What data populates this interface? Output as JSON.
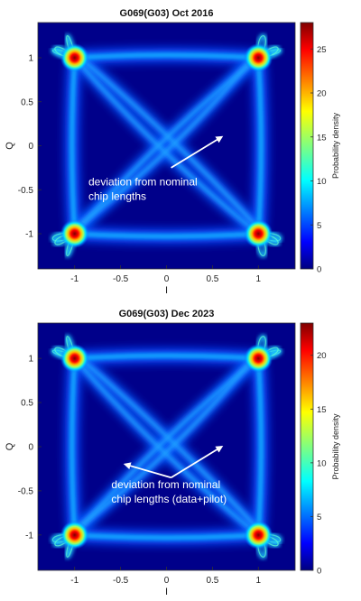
{
  "chart_data": [
    {
      "type": "heatmap",
      "title": "G069(G03) Oct 2016",
      "xlabel": "I",
      "ylabel": "Q",
      "xlim": [
        -1.4,
        1.4
      ],
      "ylim": [
        -1.4,
        1.4
      ],
      "x_ticks": [
        -1,
        -0.5,
        0,
        0.5,
        1
      ],
      "y_ticks": [
        1,
        0.5,
        0,
        -0.5,
        -1
      ],
      "colorbar": {
        "label": "Probability density",
        "range": [
          0,
          28
        ],
        "ticks": [
          0,
          5,
          10,
          15,
          20,
          25
        ]
      },
      "peaks": [
        {
          "x": -1,
          "y": 1,
          "value": 28
        },
        {
          "x": 1,
          "y": 1,
          "value": 28
        },
        {
          "x": -1,
          "y": -1,
          "value": 28
        },
        {
          "x": 1,
          "y": -1,
          "value": 28
        }
      ],
      "annotation": {
        "text_lines": [
          "deviation from nominal",
          "chip lengths"
        ],
        "arrows": [
          {
            "from": [
              0.05,
              -0.25
            ],
            "to": [
              0.6,
              0.1
            ]
          }
        ]
      }
    },
    {
      "type": "heatmap",
      "title": "G069(G03) Dec 2023",
      "xlabel": "I",
      "ylabel": "Q",
      "xlim": [
        -1.4,
        1.4
      ],
      "ylim": [
        -1.4,
        1.4
      ],
      "x_ticks": [
        -1,
        -0.5,
        0,
        0.5,
        1
      ],
      "y_ticks": [
        1,
        0.5,
        0,
        -0.5,
        -1
      ],
      "colorbar": {
        "label": "Probability density",
        "range": [
          0,
          23
        ],
        "ticks": [
          0,
          5,
          10,
          15,
          20
        ]
      },
      "peaks": [
        {
          "x": -1,
          "y": 1,
          "value": 23
        },
        {
          "x": 1,
          "y": 1,
          "value": 23
        },
        {
          "x": -1,
          "y": -1,
          "value": 23
        },
        {
          "x": 1,
          "y": -1,
          "value": 23
        }
      ],
      "annotation": {
        "text_lines": [
          "deviation from nominal",
          "chip lengths (data+pilot)"
        ],
        "arrows": [
          {
            "from": [
              0.05,
              -0.35
            ],
            "to": [
              -0.45,
              -0.2
            ]
          },
          {
            "from": [
              0.05,
              -0.35
            ],
            "to": [
              0.6,
              0.0
            ]
          }
        ]
      }
    }
  ]
}
